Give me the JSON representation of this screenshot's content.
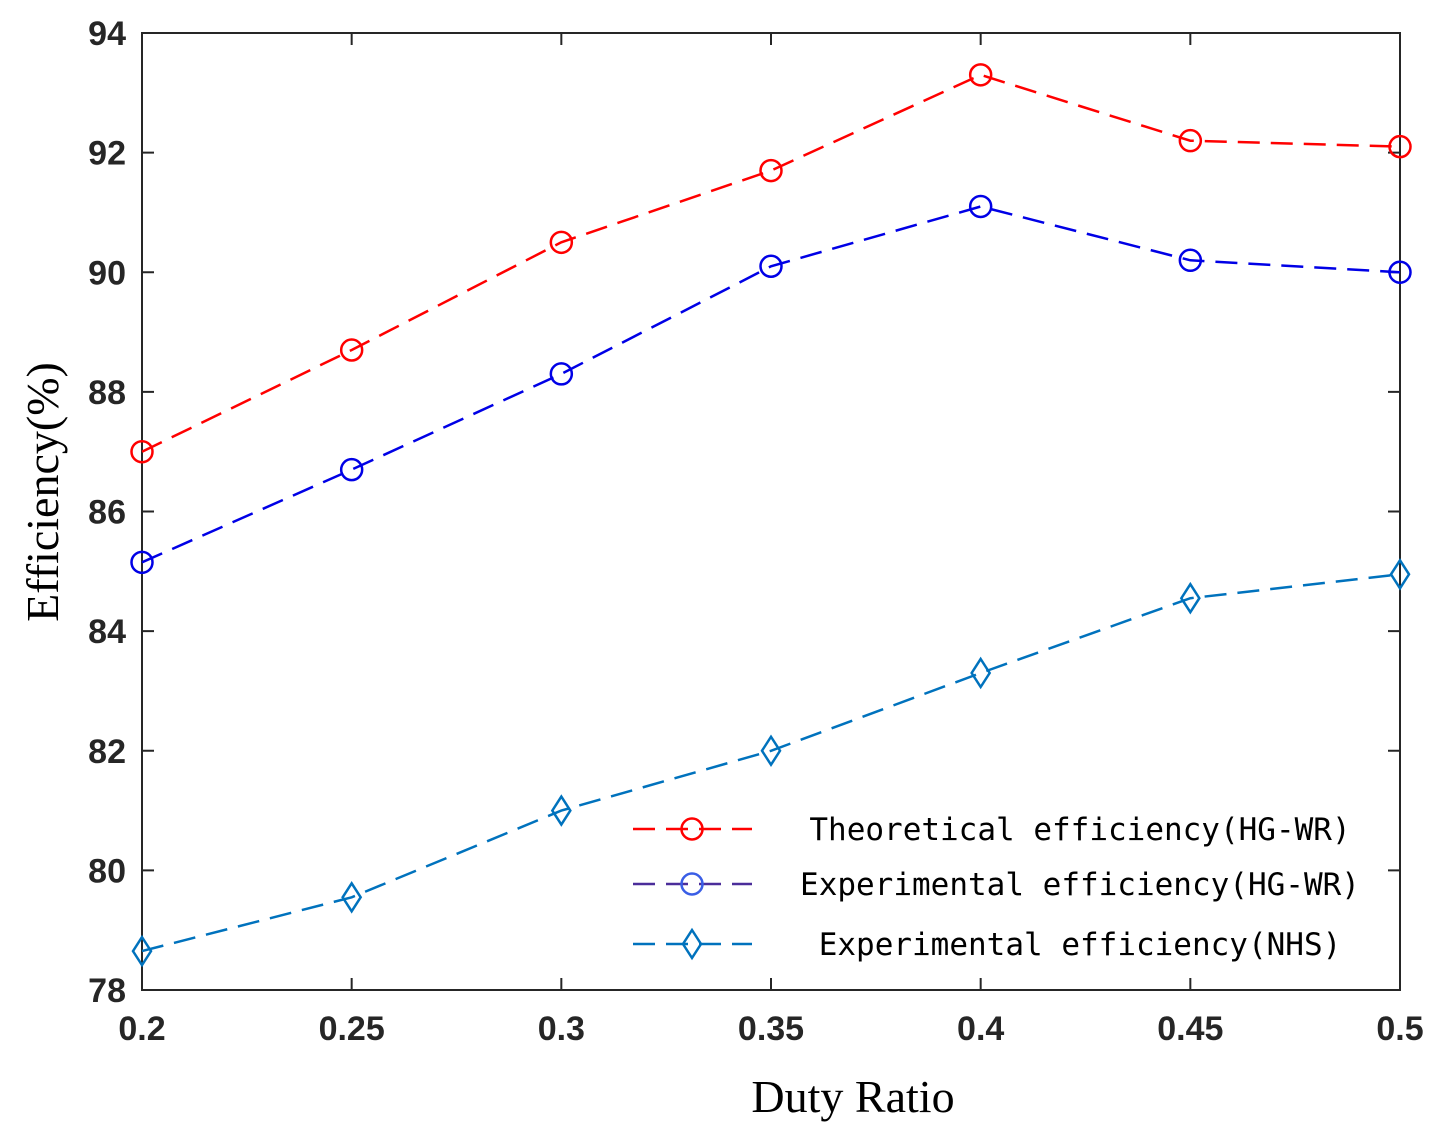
{
  "chart_data": {
    "type": "line",
    "title": "",
    "xlabel": "Duty Ratio",
    "ylabel": "Efficiency(%)",
    "x": [
      0.2,
      0.25,
      0.3,
      0.35,
      0.4,
      0.45,
      0.5
    ],
    "x_tick_labels": [
      "0.2",
      "0.25",
      "0.3",
      "0.35",
      "0.4",
      "0.45",
      "0.5"
    ],
    "y_tick_values": [
      78,
      80,
      82,
      84,
      86,
      88,
      90,
      92,
      94
    ],
    "y_tick_labels": [
      "78",
      "80",
      "82",
      "84",
      "86",
      "88",
      "90",
      "92",
      "94"
    ],
    "xlim": [
      0.2,
      0.5
    ],
    "ylim": [
      78,
      94
    ],
    "grid": false,
    "legend_position": "bottom-right",
    "series": [
      {
        "name": "Theoretical efficiency(HG-WR)",
        "values": [
          87.0,
          88.7,
          90.5,
          91.7,
          93.3,
          92.2,
          92.1
        ],
        "color": "#ff0000",
        "legend_line_color": "#ff0000",
        "legend_marker_color": "#ff0000",
        "marker": "circle"
      },
      {
        "name": "Experimental efficiency(HG-WR)",
        "values": [
          85.15,
          86.7,
          88.3,
          90.1,
          91.1,
          90.2,
          90.0
        ],
        "color": "#0000e6",
        "legend_line_color": "#4b2d9a",
        "legend_marker_color": "#3a5ee6",
        "marker": "circle"
      },
      {
        "name": "Experimental efficiency(NHS)",
        "values": [
          78.65,
          79.55,
          81.0,
          82.0,
          83.3,
          84.55,
          84.95
        ],
        "color": "#0072bd",
        "legend_line_color": "#0072bd",
        "legend_marker_color": "#0072bd",
        "marker": "diamond"
      }
    ]
  }
}
